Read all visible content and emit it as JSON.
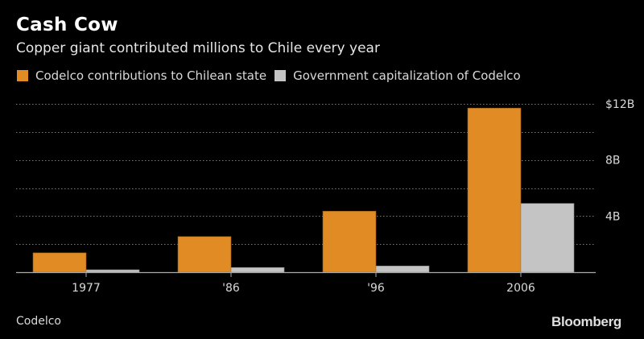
{
  "header": {
    "title": "Cash Cow",
    "subtitle": "Copper giant contributed millions to Chile every year"
  },
  "legend": [
    {
      "label": "Codelco contributions to Chilean state",
      "color": "#e08b24"
    },
    {
      "label": "Government capitalization of Codelco",
      "color": "#c4c4c4"
    }
  ],
  "footer": {
    "source": "Codelco",
    "brand": "Bloomberg"
  },
  "chart_data": {
    "type": "bar",
    "title": "Cash Cow",
    "subtitle": "Copper giant contributed millions to Chile every year",
    "categories": [
      "1977",
      "'86",
      "'96",
      "2006"
    ],
    "series": [
      {
        "name": "Codelco contributions to Chilean state",
        "color": "#e08b24",
        "values": [
          1.38,
          2.54,
          4.35,
          11.7
        ]
      },
      {
        "name": "Government capitalization of Codelco",
        "color": "#c4c4c4",
        "values": [
          0.17,
          0.33,
          0.44,
          4.9
        ]
      }
    ],
    "xlabel": "",
    "ylabel": "",
    "unit": "$B",
    "ylim": [
      0,
      12
    ],
    "gridlines": [
      2,
      4,
      6,
      8,
      10,
      12
    ],
    "yticks": [
      {
        "value": 4,
        "label": "4B"
      },
      {
        "value": 8,
        "label": "8B"
      },
      {
        "value": 12,
        "label": "$12B"
      }
    ],
    "grid": true,
    "legend_position": "top-left",
    "yaxis_position": "right",
    "source": "Codelco"
  }
}
